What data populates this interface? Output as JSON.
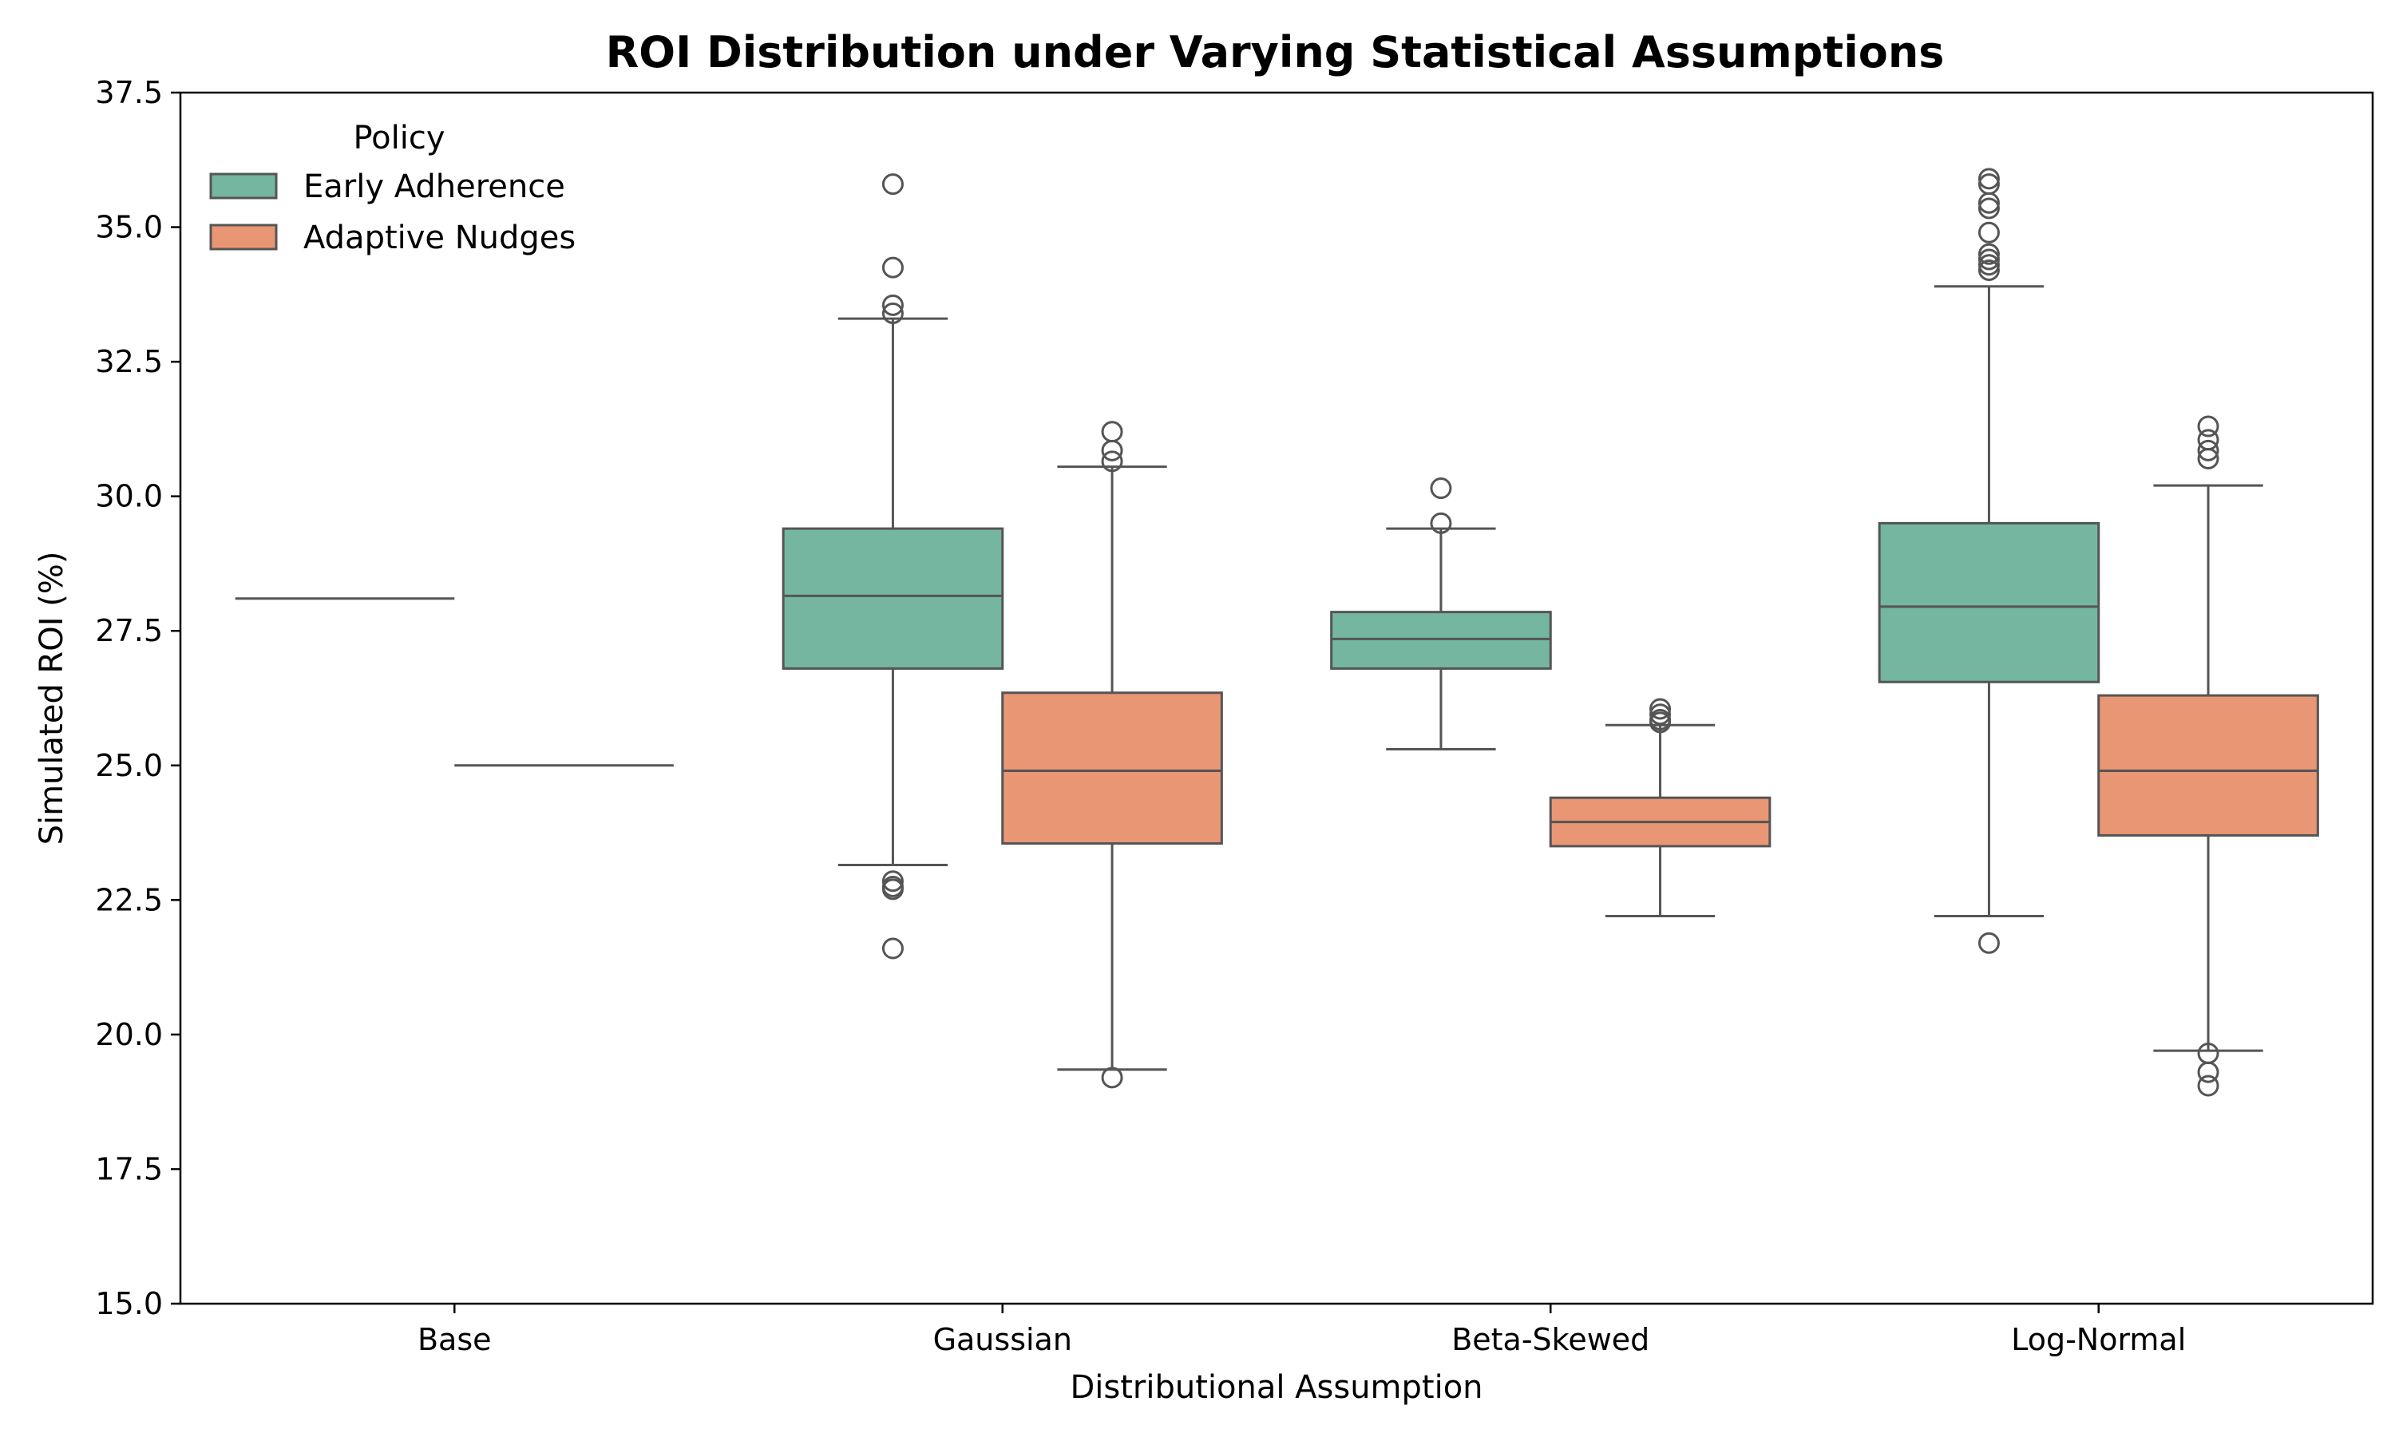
{
  "chart_data": {
    "type": "box",
    "title": "ROI Distribution under Varying Statistical Assumptions",
    "xlabel": "Distributional Assumption",
    "ylabel": "Simulated ROI (%)",
    "ylim": [
      15.0,
      37.5
    ],
    "yticks": [
      "15.0",
      "17.5",
      "20.0",
      "22.5",
      "25.0",
      "27.5",
      "30.0",
      "32.5",
      "35.0",
      "37.5"
    ],
    "categories": [
      "Base",
      "Gaussian",
      "Beta-Skewed",
      "Log-Normal"
    ],
    "grid": false,
    "legend": {
      "title": "Policy",
      "position": "top-left",
      "entries": [
        "Early Adherence",
        "Adaptive Nudges"
      ]
    },
    "series": [
      {
        "name": "Early Adherence",
        "color": "#74b69f",
        "boxes": [
          {
            "category": "Base",
            "whislo": 28.1,
            "q1": 28.1,
            "med": 28.1,
            "q3": 28.1,
            "whishi": 28.1,
            "fliers": []
          },
          {
            "category": "Gaussian",
            "whislo": 23.15,
            "q1": 26.8,
            "med": 28.15,
            "q3": 29.4,
            "whishi": 33.3,
            "fliers": [
              35.8,
              34.25,
              33.55,
              33.4,
              22.85,
              22.75,
              22.7,
              21.6
            ]
          },
          {
            "category": "Beta-Skewed",
            "whislo": 25.3,
            "q1": 26.8,
            "med": 27.35,
            "q3": 27.85,
            "whishi": 29.4,
            "fliers": [
              30.15,
              29.5
            ]
          },
          {
            "category": "Log-Normal",
            "whislo": 22.2,
            "q1": 26.55,
            "med": 27.95,
            "q3": 29.5,
            "whishi": 33.9,
            "fliers": [
              35.9,
              35.8,
              35.45,
              35.35,
              34.9,
              34.5,
              34.4,
              34.3,
              34.2,
              21.7
            ]
          }
        ]
      },
      {
        "name": "Adaptive Nudges",
        "color": "#e99674",
        "boxes": [
          {
            "category": "Base",
            "whislo": 25.0,
            "q1": 25.0,
            "med": 25.0,
            "q3": 25.0,
            "whishi": 25.0,
            "fliers": []
          },
          {
            "category": "Gaussian",
            "whislo": 19.35,
            "q1": 23.55,
            "med": 24.9,
            "q3": 26.35,
            "whishi": 30.55,
            "fliers": [
              31.2,
              30.85,
              30.65,
              19.2
            ]
          },
          {
            "category": "Beta-Skewed",
            "whislo": 22.2,
            "q1": 23.5,
            "med": 23.95,
            "q3": 24.4,
            "whishi": 25.75,
            "fliers": [
              26.05,
              25.95,
              25.85,
              25.8
            ]
          },
          {
            "category": "Log-Normal",
            "whislo": 19.7,
            "q1": 23.7,
            "med": 24.9,
            "q3": 26.3,
            "whishi": 30.2,
            "fliers": [
              31.3,
              31.05,
              30.85,
              30.7,
              19.65,
              19.3,
              19.05
            ]
          }
        ]
      }
    ]
  }
}
